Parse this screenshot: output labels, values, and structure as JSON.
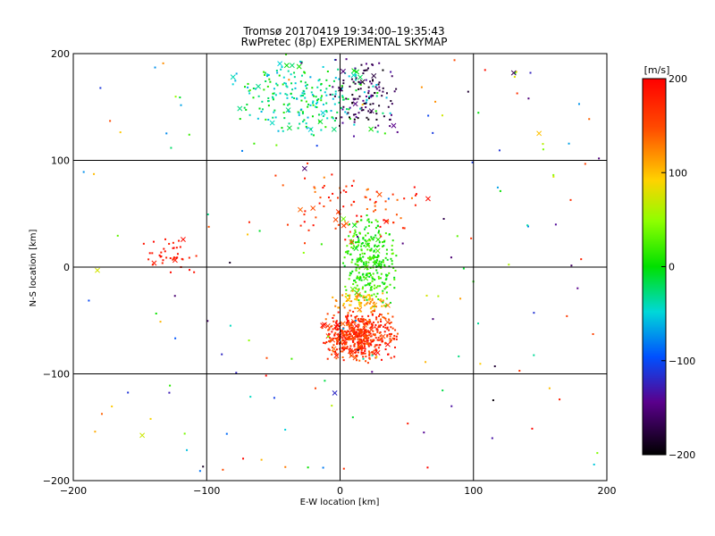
{
  "chart_data": {
    "type": "scatter",
    "title": "Tromsø 20170419 19:34:00–19:35:43",
    "subtitle": "RwPretec (8p) EXPERIMENTAL SKYMAP",
    "xlabel": "E-W location [km]",
    "ylabel": "N-S location [km]",
    "xlim": [
      -200,
      200
    ],
    "ylim": [
      -200,
      200
    ],
    "xticks": [
      -200,
      -100,
      0,
      100,
      200
    ],
    "yticks": [
      -200,
      -100,
      0,
      100,
      200
    ],
    "grid": true,
    "colorbar": {
      "label": "[m/s]",
      "min": -200,
      "max": 200,
      "ticks": [
        200,
        100,
        0,
        -100,
        -200
      ],
      "colormap": "black-purple-blue-cyan-green-yellow-red"
    },
    "clusters": [
      {
        "region": "south-center",
        "x_range": [
          -15,
          45
        ],
        "y_range": [
          -90,
          -40
        ],
        "velocity_range": [
          130,
          200
        ],
        "approx_count": 500
      },
      {
        "region": "center",
        "x_range": [
          0,
          45
        ],
        "y_range": [
          -40,
          50
        ],
        "velocity_range": [
          -10,
          40
        ],
        "approx_count": 300
      },
      {
        "region": "center-yellow",
        "x_range": [
          -10,
          40
        ],
        "y_range": [
          -45,
          -20
        ],
        "velocity_range": [
          80,
          130
        ],
        "approx_count": 80
      },
      {
        "region": "north",
        "x_range": [
          -90,
          40
        ],
        "y_range": [
          120,
          200
        ],
        "velocity_range": [
          -70,
          20
        ],
        "approx_count": 250
      },
      {
        "region": "north-east-dark",
        "x_range": [
          -10,
          50
        ],
        "y_range": [
          120,
          200
        ],
        "velocity_range": [
          -200,
          -140
        ],
        "approx_count": 120
      },
      {
        "region": "west",
        "x_range": [
          -150,
          -100
        ],
        "y_range": [
          -10,
          30
        ],
        "velocity_range": [
          170,
          200
        ],
        "approx_count": 40
      },
      {
        "region": "mid-north",
        "x_range": [
          -70,
          80
        ],
        "y_range": [
          20,
          100
        ],
        "velocity_range": [
          120,
          200
        ],
        "approx_count": 90
      }
    ]
  }
}
